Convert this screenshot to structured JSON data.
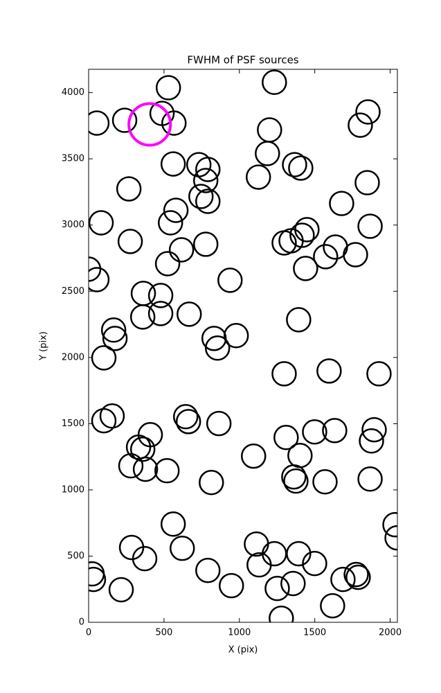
{
  "chart_data": {
    "type": "scatter",
    "title": "FWHM of PSF sources",
    "x_label": "X (pix)",
    "y_label": "Y (pix)",
    "xlim": [
      0,
      2048
    ],
    "ylim": [
      0,
      4176
    ],
    "xticks": [
      0,
      500,
      1000,
      1500,
      2000
    ],
    "yticks": [
      0,
      500,
      1000,
      1500,
      2000,
      2500,
      3000,
      3500,
      4000
    ],
    "grid": false,
    "series": [
      {
        "color": "#000000",
        "radius": 78,
        "linewidth": 2.5,
        "x": [
          55,
          239,
          487,
          529,
          566,
          1232,
          1200,
          1853,
          1802,
          561,
          731,
          791,
          777,
          745,
          791,
          579,
          543,
          267,
          83,
          276,
          616,
          524,
          777,
          0,
          55,
          938,
          1126,
          1186,
          1366,
          1407,
          1678,
          1848,
          1867,
          1448,
          1416,
          1343,
          1297,
          1637,
          1572,
          1770,
          1439,
          363,
          478,
          359,
          478,
          667,
          166,
          175,
          101,
          832,
          855,
          979,
          1393,
          1297,
          1595,
          1926,
          156,
          101,
          644,
          662,
          864,
          409,
          331,
          359,
          280,
          377,
          520,
          814,
          1094,
          1310,
          1499,
          1632,
          1894,
          1876,
          1402,
          1361,
          1375,
          1568,
          1867,
          561,
          2032,
          2046,
          285,
          372,
          621,
          1113,
          1232,
          1131,
          1393,
          1499,
          23,
          32,
          791,
          947,
          216,
          1251,
          1356,
          1687,
          1788,
          1775,
          1618,
          1278
        ],
        "values": [
          3770,
          3791,
          3843,
          4037,
          3770,
          4078,
          3718,
          3854,
          3754,
          3461,
          3456,
          3420,
          3336,
          3216,
          3179,
          3111,
          3017,
          3273,
          3017,
          2876,
          2813,
          2708,
          2855,
          2667,
          2588,
          2583,
          3362,
          3540,
          3456,
          3430,
          3163,
          3320,
          2991,
          2965,
          2923,
          2881,
          2865,
          2834,
          2761,
          2776,
          2672,
          2484,
          2468,
          2306,
          2332,
          2327,
          2207,
          2144,
          1997,
          2144,
          2071,
          2165,
          2285,
          1877,
          1898,
          1877,
          1558,
          1522,
          1553,
          1516,
          1501,
          1417,
          1323,
          1307,
          1182,
          1156,
          1145,
          1056,
          1255,
          1396,
          1438,
          1448,
          1454,
          1370,
          1260,
          1098,
          1067,
          1061,
          1082,
          742,
          737,
          638,
          565,
          481,
          559,
          591,
          518,
          434,
          518,
          444,
          366,
          324,
          392,
          277,
          246,
          256,
          293,
          324,
          340,
          361,
          125,
          31
        ]
      },
      {
        "color": "#ff00ff",
        "radius": 138,
        "linewidth": 4,
        "x": [
          405
        ],
        "values": [
          3760
        ]
      }
    ]
  }
}
